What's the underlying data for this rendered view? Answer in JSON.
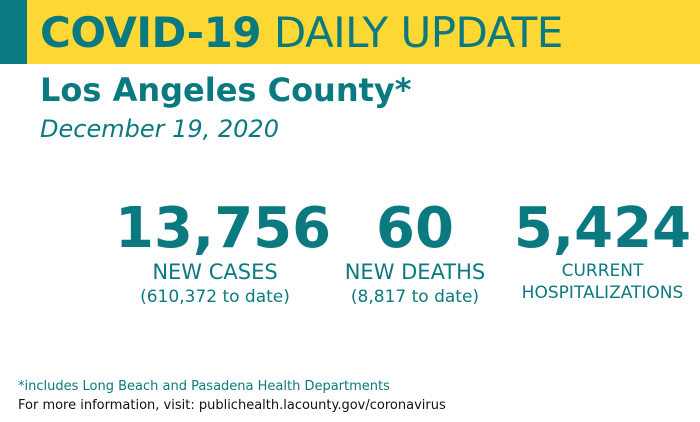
{
  "banner": {
    "title_bold": "COVID-19",
    "title_rest": "DAILY UPDATE"
  },
  "header": {
    "county": "Los Angeles County*",
    "date": "December 19, 2020"
  },
  "stats": {
    "cases": {
      "value": "13,756",
      "label": "NEW CASES",
      "sub": "(610,372 to date)"
    },
    "deaths": {
      "value": "60",
      "label": "NEW DEATHS",
      "sub": "(8,817 to date)"
    },
    "hospitalizations": {
      "value": "5,424",
      "label_line1": "CURRENT",
      "label_line2": "HOSPITALIZATIONS"
    }
  },
  "footer": {
    "footnote": "*includes Long Beach and Pasadena Health Departments",
    "more_info": "For more information, visit: publichealth.lacounty.gov/coronavirus"
  },
  "colors": {
    "brand_teal": "#0b7a80",
    "banner_yellow": "#fdd835"
  }
}
